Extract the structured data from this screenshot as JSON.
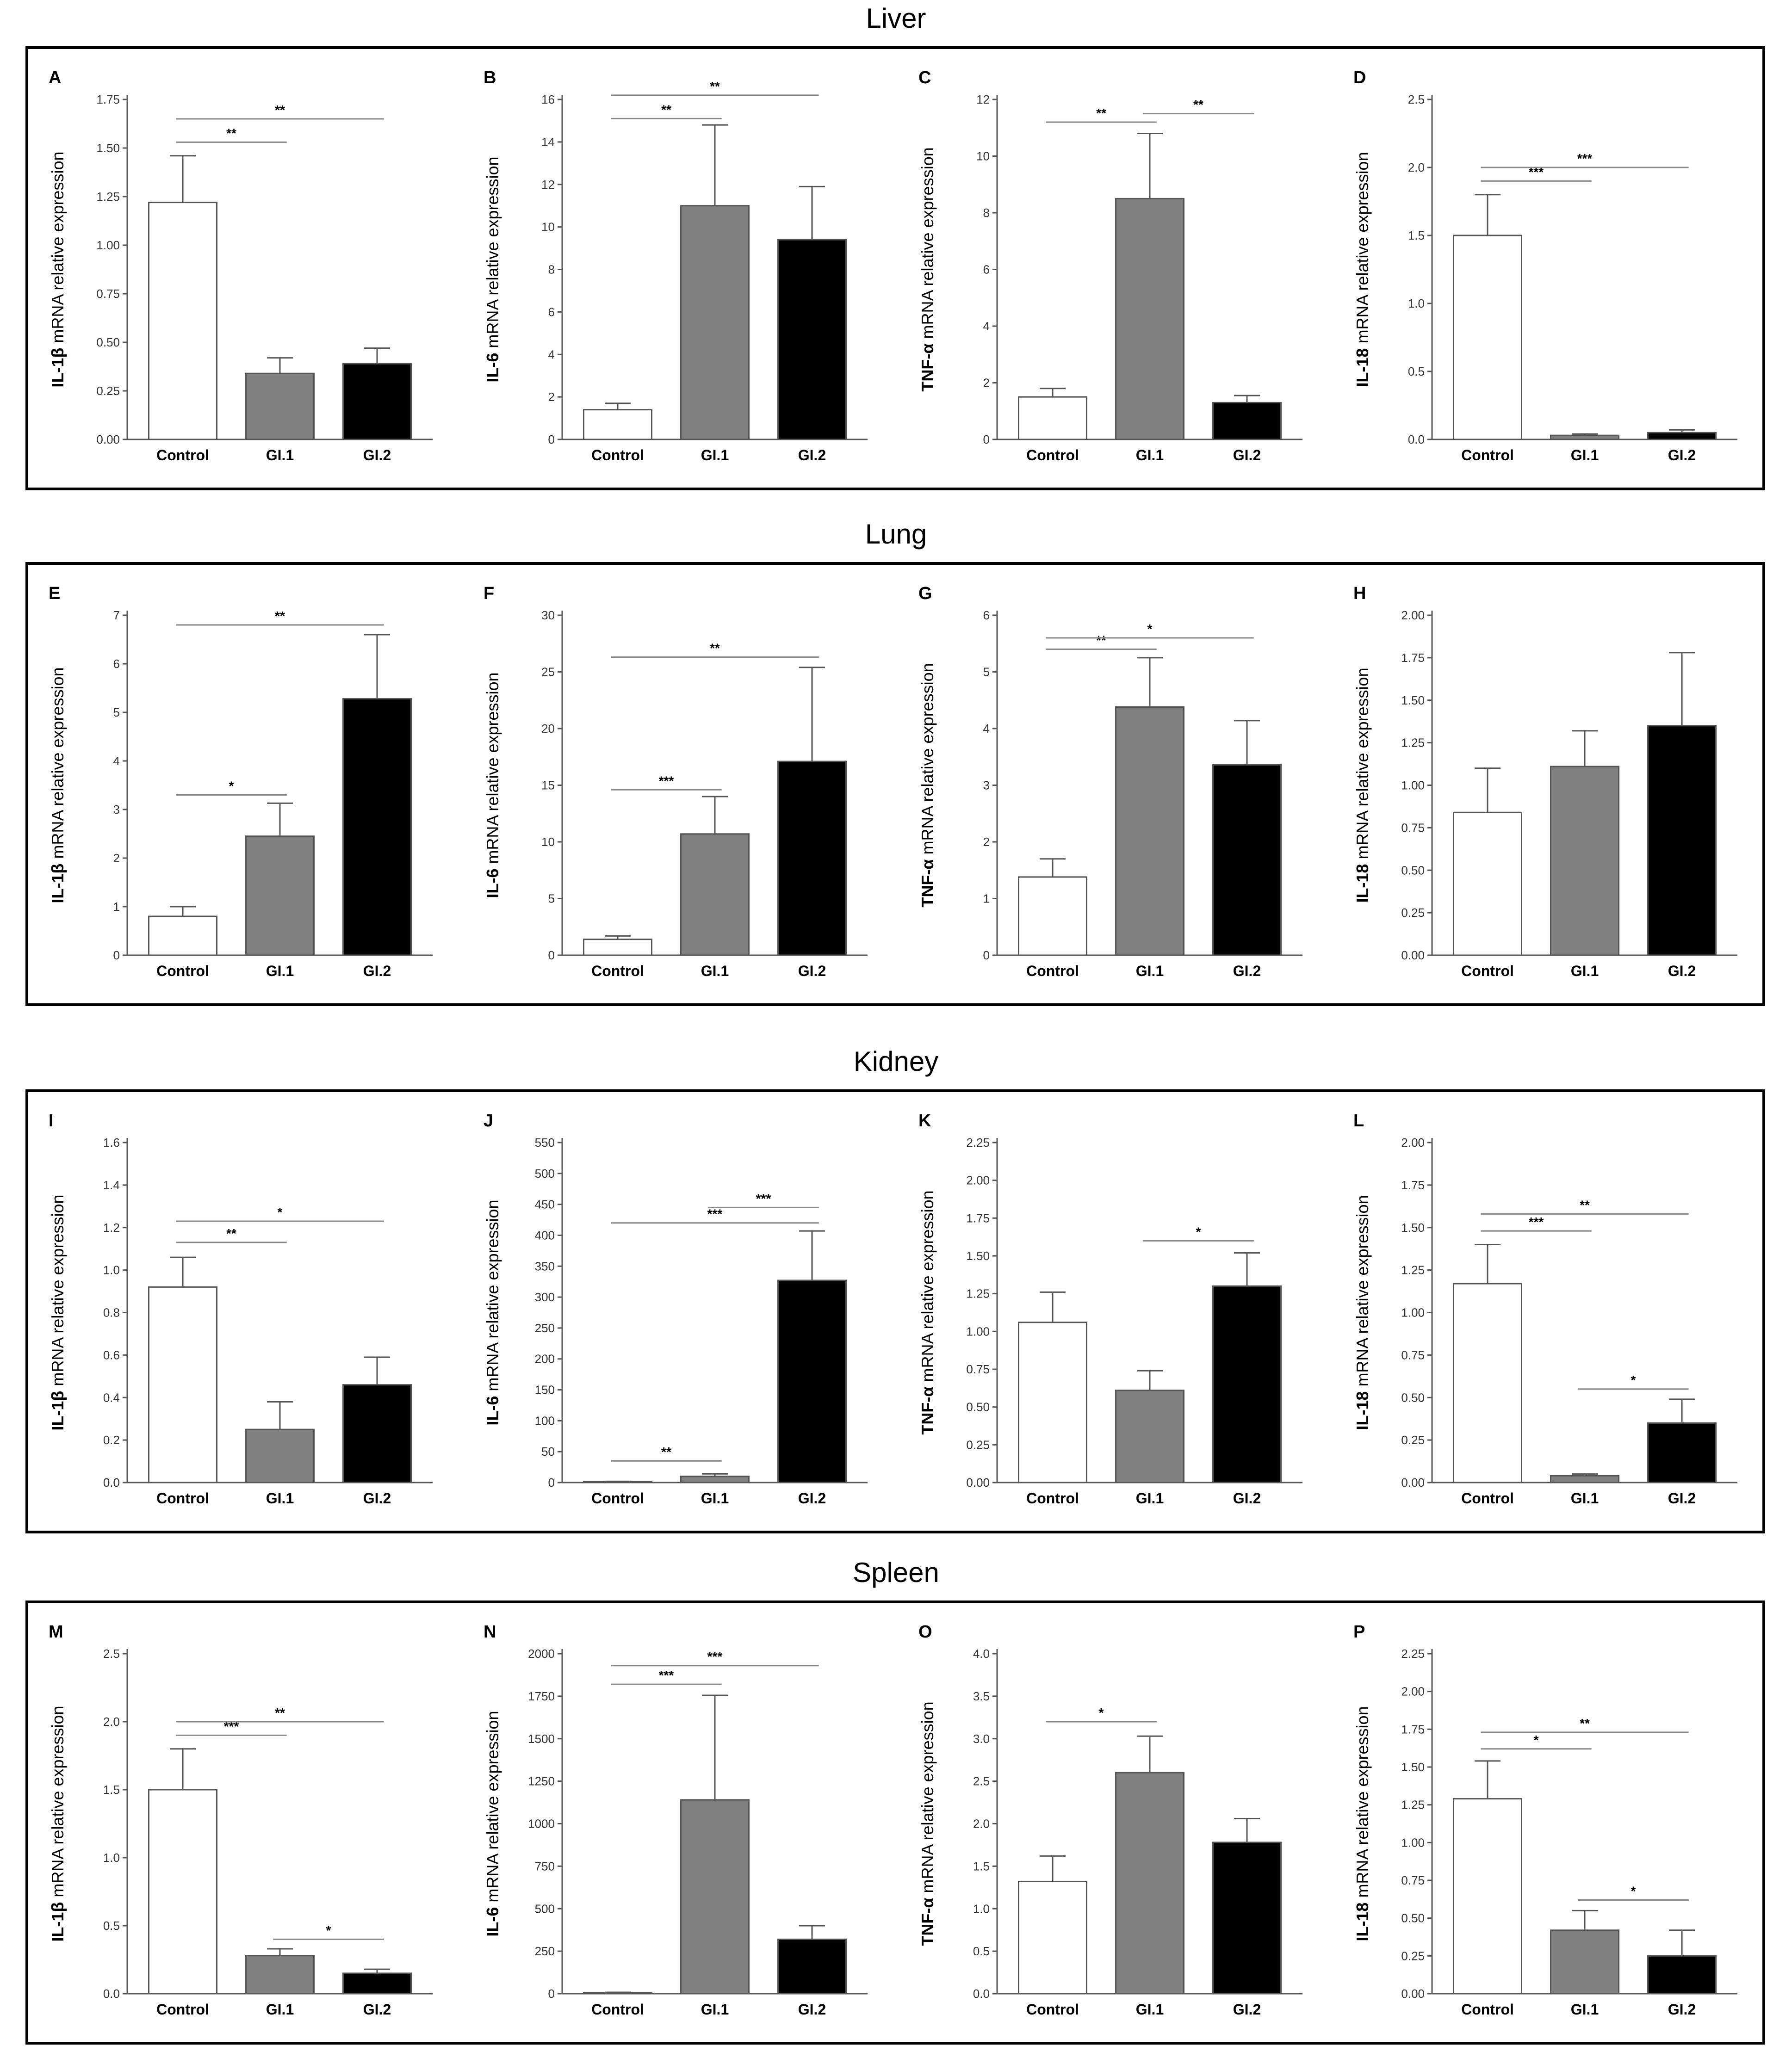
{
  "figure": {
    "sections": [
      {
        "title": "Liver",
        "panels": [
          0,
          1,
          2,
          3
        ]
      },
      {
        "title": "Lung",
        "panels": [
          4,
          5,
          6,
          7
        ]
      },
      {
        "title": "Kidney",
        "panels": [
          8,
          9,
          10,
          11
        ]
      },
      {
        "title": "Spleen",
        "panels": [
          12,
          13,
          14,
          15
        ]
      }
    ]
  },
  "colors": {
    "control": "#ffffff",
    "gi1": "#808080",
    "gi2": "#000000",
    "axis": "#555555",
    "sig_line": "#888888",
    "box": "#000000"
  },
  "chart_data": [
    {
      "panel": "A",
      "type": "bar",
      "gene": "IL-1β",
      "ylabel_suffix": " mRNA relative expression",
      "categories": [
        "Control",
        "GI.1",
        "GI.2"
      ],
      "values": [
        1.22,
        0.34,
        0.39
      ],
      "errors": [
        0.24,
        0.08,
        0.08
      ],
      "ylim": [
        0,
        1.75
      ],
      "yticks": [
        "0.00",
        "0.25",
        "0.50",
        "0.75",
        "1.00",
        "1.25",
        "1.50",
        "1.75"
      ],
      "significance": [
        {
          "from": 0,
          "to": 1,
          "label": "**",
          "y": 1.53
        },
        {
          "from": 0,
          "to": 2,
          "label": "**",
          "y": 1.65
        }
      ]
    },
    {
      "panel": "B",
      "type": "bar",
      "gene": "IL-6",
      "ylabel_suffix": " mRNA relative expression",
      "categories": [
        "Control",
        "GI.1",
        "GI.2"
      ],
      "values": [
        1.4,
        11.0,
        9.4
      ],
      "errors": [
        0.3,
        3.8,
        2.5
      ],
      "ylim": [
        0,
        16
      ],
      "yticks": [
        "0",
        "2",
        "4",
        "6",
        "8",
        "10",
        "12",
        "14",
        "16"
      ],
      "significance": [
        {
          "from": 0,
          "to": 1,
          "label": "**",
          "y": 15.1
        },
        {
          "from": 0,
          "to": 2,
          "label": "**",
          "y": 16.2
        }
      ]
    },
    {
      "panel": "C",
      "type": "bar",
      "gene": "TNF-α",
      "ylabel_suffix": " mRNA relative expression",
      "categories": [
        "Control",
        "GI.1",
        "GI.2"
      ],
      "values": [
        1.5,
        8.5,
        1.3
      ],
      "errors": [
        0.3,
        2.3,
        0.25
      ],
      "ylim": [
        0,
        12
      ],
      "yticks": [
        "0",
        "2",
        "4",
        "6",
        "8",
        "10",
        "12"
      ],
      "significance": [
        {
          "from": 0,
          "to": 1,
          "label": "**",
          "y": 11.2
        },
        {
          "from": 1,
          "to": 2,
          "label": "**",
          "y": 11.5
        }
      ]
    },
    {
      "panel": "D",
      "type": "bar",
      "gene": "IL-18",
      "ylabel_suffix": " mRNA relative expression",
      "categories": [
        "Control",
        "GI.1",
        "GI.2"
      ],
      "values": [
        1.5,
        0.03,
        0.05
      ],
      "errors": [
        0.3,
        0.01,
        0.02
      ],
      "ylim": [
        0,
        2.5
      ],
      "yticks": [
        "0.0",
        "0.5",
        "1.0",
        "1.5",
        "2.0",
        "2.5"
      ],
      "significance": [
        {
          "from": 0,
          "to": 1,
          "label": "***",
          "y": 1.9
        },
        {
          "from": 0,
          "to": 2,
          "label": "***",
          "y": 2.0
        }
      ]
    },
    {
      "panel": "E",
      "type": "bar",
      "gene": "IL-1β",
      "ylabel_suffix": " mRNA relative expression",
      "categories": [
        "Control",
        "GI.1",
        "GI.2"
      ],
      "values": [
        0.8,
        2.45,
        5.28
      ],
      "errors": [
        0.2,
        0.68,
        1.32
      ],
      "ylim": [
        0,
        7
      ],
      "yticks": [
        "0",
        "1",
        "2",
        "3",
        "4",
        "5",
        "6",
        "7"
      ],
      "significance": [
        {
          "from": 0,
          "to": 1,
          "label": "*",
          "y": 3.3
        },
        {
          "from": 0,
          "to": 2,
          "label": "**",
          "y": 6.8
        }
      ]
    },
    {
      "panel": "F",
      "type": "bar",
      "gene": "IL-6",
      "ylabel_suffix": " mRNA relative expression",
      "categories": [
        "Control",
        "GI.1",
        "GI.2"
      ],
      "values": [
        1.4,
        10.7,
        17.1
      ],
      "errors": [
        0.3,
        3.3,
        8.3
      ],
      "ylim": [
        0,
        30
      ],
      "yticks": [
        "0",
        "5",
        "10",
        "15",
        "20",
        "25",
        "30"
      ],
      "significance": [
        {
          "from": 0,
          "to": 1,
          "label": "***",
          "y": 14.6
        },
        {
          "from": 0,
          "to": 2,
          "label": "**",
          "y": 26.3
        }
      ]
    },
    {
      "panel": "G",
      "type": "bar",
      "gene": "TNF-α",
      "ylabel_suffix": " mRNA relative expression",
      "categories": [
        "Control",
        "GI.1",
        "GI.2"
      ],
      "values": [
        1.38,
        4.38,
        3.36
      ],
      "errors": [
        0.32,
        0.87,
        0.78
      ],
      "ylim": [
        0,
        6
      ],
      "yticks": [
        "0",
        "1",
        "2",
        "3",
        "4",
        "5",
        "6"
      ],
      "significance": [
        {
          "from": 0,
          "to": 1,
          "label": "**",
          "y": 5.4
        },
        {
          "from": 0,
          "to": 2,
          "label": "*",
          "y": 5.6
        }
      ]
    },
    {
      "panel": "H",
      "type": "bar",
      "gene": "IL-18",
      "ylabel_suffix": " mRNA relative expression",
      "categories": [
        "Control",
        "GI.1",
        "GI.2"
      ],
      "values": [
        0.84,
        1.11,
        1.35
      ],
      "errors": [
        0.26,
        0.21,
        0.43
      ],
      "ylim": [
        0,
        2.0
      ],
      "yticks": [
        "0.00",
        "0.25",
        "0.50",
        "0.75",
        "1.00",
        "1.25",
        "1.50",
        "1.75",
        "2.00"
      ],
      "significance": []
    },
    {
      "panel": "I",
      "type": "bar",
      "gene": "IL-1β",
      "ylabel_suffix": " mRNA relative expression",
      "categories": [
        "Control",
        "GI.1",
        "GI.2"
      ],
      "values": [
        0.92,
        0.25,
        0.46
      ],
      "errors": [
        0.14,
        0.13,
        0.13
      ],
      "ylim": [
        0,
        1.6
      ],
      "yticks": [
        "0.0",
        "0.2",
        "0.4",
        "0.6",
        "0.8",
        "1.0",
        "1.2",
        "1.4",
        "1.6"
      ],
      "significance": [
        {
          "from": 0,
          "to": 1,
          "label": "**",
          "y": 1.13
        },
        {
          "from": 0,
          "to": 2,
          "label": "*",
          "y": 1.23
        }
      ]
    },
    {
      "panel": "J",
      "type": "bar",
      "gene": "IL-6",
      "ylabel_suffix": " mRNA relative expression",
      "categories": [
        "Control",
        "GI.1",
        "GI.2"
      ],
      "values": [
        1.5,
        10,
        327
      ],
      "errors": [
        0.5,
        4,
        80
      ],
      "ylim": [
        0,
        550
      ],
      "yticks": [
        "0",
        "50",
        "100",
        "150",
        "200",
        "250",
        "300",
        "350",
        "400",
        "450",
        "500",
        "550"
      ],
      "significance": [
        {
          "from": 0,
          "to": 1,
          "label": "**",
          "y": 35
        },
        {
          "from": 0,
          "to": 2,
          "label": "***",
          "y": 420
        },
        {
          "from": 1,
          "to": 2,
          "label": "***",
          "y": 445
        }
      ]
    },
    {
      "panel": "K",
      "type": "bar",
      "gene": "TNF-α",
      "ylabel_suffix": " mRNA relative expression",
      "categories": [
        "Control",
        "GI.1",
        "GI.2"
      ],
      "values": [
        1.06,
        0.61,
        1.3
      ],
      "errors": [
        0.2,
        0.13,
        0.22
      ],
      "ylim": [
        0,
        2.25
      ],
      "yticks": [
        "0.00",
        "0.25",
        "0.50",
        "0.75",
        "1.00",
        "1.25",
        "1.50",
        "1.75",
        "2.00",
        "2.25"
      ],
      "significance": [
        {
          "from": 1,
          "to": 2,
          "label": "*",
          "y": 1.6
        }
      ]
    },
    {
      "panel": "L",
      "type": "bar",
      "gene": "IL-18",
      "ylabel_suffix": " mRNA relative expression",
      "categories": [
        "Control",
        "GI.1",
        "GI.2"
      ],
      "values": [
        1.17,
        0.04,
        0.35
      ],
      "errors": [
        0.23,
        0.01,
        0.14
      ],
      "ylim": [
        0,
        2.0
      ],
      "yticks": [
        "0.00",
        "0.25",
        "0.50",
        "0.75",
        "1.00",
        "1.25",
        "1.50",
        "1.75",
        "2.00"
      ],
      "significance": [
        {
          "from": 0,
          "to": 1,
          "label": "***",
          "y": 1.48
        },
        {
          "from": 0,
          "to": 2,
          "label": "**",
          "y": 1.58
        },
        {
          "from": 1,
          "to": 2,
          "label": "*",
          "y": 0.55
        }
      ]
    },
    {
      "panel": "M",
      "type": "bar",
      "gene": "IL-1β",
      "ylabel_suffix": " mRNA relative expression",
      "categories": [
        "Control",
        "GI.1",
        "GI.2"
      ],
      "values": [
        1.5,
        0.28,
        0.15
      ],
      "errors": [
        0.3,
        0.05,
        0.03
      ],
      "ylim": [
        0,
        2.5
      ],
      "yticks": [
        "0.0",
        "0.5",
        "1.0",
        "1.5",
        "2.0",
        "2.5"
      ],
      "significance": [
        {
          "from": 0,
          "to": 1,
          "label": "***",
          "y": 1.9
        },
        {
          "from": 0,
          "to": 2,
          "label": "**",
          "y": 2.0
        },
        {
          "from": 1,
          "to": 2,
          "label": "*",
          "y": 0.4
        }
      ]
    },
    {
      "panel": "N",
      "type": "bar",
      "gene": "IL-6",
      "ylabel_suffix": " mRNA relative expression",
      "categories": [
        "Control",
        "GI.1",
        "GI.2"
      ],
      "values": [
        5,
        1140,
        320
      ],
      "errors": [
        3,
        615,
        80
      ],
      "ylim": [
        0,
        2000
      ],
      "yticks": [
        "0",
        "250",
        "500",
        "750",
        "1000",
        "1250",
        "1500",
        "1750",
        "2000"
      ],
      "significance": [
        {
          "from": 0,
          "to": 1,
          "label": "***",
          "y": 1820
        },
        {
          "from": 0,
          "to": 2,
          "label": "***",
          "y": 1930
        }
      ]
    },
    {
      "panel": "O",
      "type": "bar",
      "gene": "TNF-α",
      "ylabel_suffix": " mRNA relative expression",
      "categories": [
        "Control",
        "GI.1",
        "GI.2"
      ],
      "values": [
        1.32,
        2.6,
        1.78
      ],
      "errors": [
        0.3,
        0.43,
        0.28
      ],
      "ylim": [
        0,
        4.0
      ],
      "yticks": [
        "0.0",
        "0.5",
        "1.0",
        "1.5",
        "2.0",
        "2.5",
        "3.0",
        "3.5",
        "4.0"
      ],
      "significance": [
        {
          "from": 0,
          "to": 1,
          "label": "*",
          "y": 3.2
        }
      ]
    },
    {
      "panel": "P",
      "type": "bar",
      "gene": "IL-18",
      "ylabel_suffix": " mRNA relative expression",
      "categories": [
        "Control",
        "GI.1",
        "GI.2"
      ],
      "values": [
        1.29,
        0.42,
        0.25
      ],
      "errors": [
        0.25,
        0.13,
        0.17
      ],
      "ylim": [
        0,
        2.25
      ],
      "yticks": [
        "0.00",
        "0.25",
        "0.50",
        "0.75",
        "1.00",
        "1.25",
        "1.50",
        "1.75",
        "2.00",
        "2.25"
      ],
      "significance": [
        {
          "from": 0,
          "to": 1,
          "label": "*",
          "y": 1.62
        },
        {
          "from": 0,
          "to": 2,
          "label": "**",
          "y": 1.73
        },
        {
          "from": 1,
          "to": 2,
          "label": "*",
          "y": 0.62
        }
      ]
    }
  ]
}
